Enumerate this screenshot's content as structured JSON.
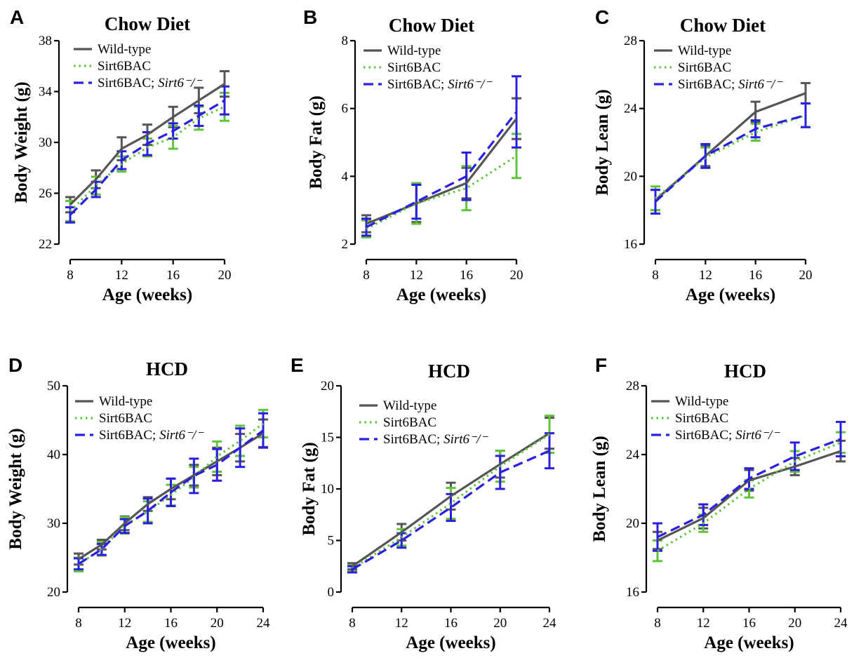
{
  "chart_data": [
    {
      "panel": "A",
      "type": "line",
      "title": "Chow Diet",
      "xlabel": "Age (weeks)",
      "ylabel": "Body Weight (g)",
      "xlim": [
        8,
        20
      ],
      "ylim": [
        22,
        38
      ],
      "xticks": [
        8,
        12,
        16,
        20
      ],
      "yticks": [
        22,
        26,
        30,
        34,
        38
      ],
      "x": [
        8,
        10,
        12,
        14,
        16,
        18,
        20
      ],
      "series": [
        {
          "name": "Wild-type",
          "color": "#555555",
          "dash": "solid",
          "values": [
            25.1,
            27.1,
            29.5,
            30.6,
            32.0,
            33.3,
            34.6
          ],
          "errors": [
            0.6,
            0.7,
            0.9,
            0.8,
            0.8,
            1.0,
            1.0
          ]
        },
        {
          "name": "Sirt6BAC",
          "color": "#5ec43a",
          "dash": "dotted",
          "values": [
            24.6,
            26.6,
            28.3,
            29.6,
            30.4,
            31.9,
            32.8
          ],
          "errors": [
            0.8,
            0.7,
            0.6,
            0.7,
            0.9,
            0.9,
            1.1
          ]
        },
        {
          "name": "Sirt6BAC; Sirt6⁻/⁻",
          "color": "#2a1fe0",
          "dash": "dashed",
          "values": [
            24.3,
            26.3,
            28.6,
            29.9,
            30.9,
            32.1,
            33.3
          ],
          "errors": [
            0.6,
            0.6,
            0.7,
            0.9,
            0.6,
            0.8,
            1.1
          ]
        }
      ]
    },
    {
      "panel": "B",
      "type": "line",
      "title": "Chow Diet",
      "xlabel": "Age (weeks)",
      "ylabel": "Body Fat (g)",
      "xlim": [
        8,
        20
      ],
      "ylim": [
        2,
        8
      ],
      "xticks": [
        8,
        12,
        16,
        20
      ],
      "yticks": [
        2,
        4,
        6,
        8
      ],
      "x": [
        8,
        12,
        16,
        20
      ],
      "series": [
        {
          "name": "Wild-type",
          "color": "#555555",
          "dash": "solid",
          "values": [
            2.6,
            3.2,
            3.8,
            5.7
          ],
          "errors": [
            0.25,
            0.55,
            0.45,
            0.6
          ]
        },
        {
          "name": "Sirt6BAC",
          "color": "#5ec43a",
          "dash": "dotted",
          "values": [
            2.45,
            3.2,
            3.65,
            4.6
          ],
          "errors": [
            0.25,
            0.6,
            0.65,
            0.65
          ]
        },
        {
          "name": "Sirt6BAC; Sirt6⁻/⁻",
          "color": "#2a1fe0",
          "dash": "dashed",
          "values": [
            2.5,
            3.25,
            4.0,
            5.9
          ],
          "errors": [
            0.25,
            0.5,
            0.7,
            1.05
          ]
        }
      ]
    },
    {
      "panel": "C",
      "type": "line",
      "title": "Chow Diet",
      "xlabel": "Age (weeks)",
      "ylabel": "Body Lean (g)",
      "xlim": [
        8,
        20
      ],
      "ylim": [
        16,
        28
      ],
      "xticks": [
        8,
        12,
        16,
        20
      ],
      "yticks": [
        16,
        20,
        24,
        28
      ],
      "x": [
        8,
        12,
        16,
        20
      ],
      "series": [
        {
          "name": "Wild-type",
          "color": "#555555",
          "dash": "solid",
          "values": [
            18.6,
            21.2,
            23.8,
            24.9
          ],
          "errors": [
            0.6,
            0.6,
            0.6,
            0.6
          ]
        },
        {
          "name": "Sirt6BAC",
          "color": "#5ec43a",
          "dash": "dotted",
          "values": [
            18.7,
            21.1,
            22.6,
            23.6
          ],
          "errors": [
            0.7,
            0.6,
            0.5,
            0.7
          ]
        },
        {
          "name": "Sirt6BAC; Sirt6⁻/⁻",
          "color": "#2a1fe0",
          "dash": "dashed",
          "values": [
            18.5,
            21.2,
            22.8,
            23.6
          ],
          "errors": [
            0.7,
            0.7,
            0.5,
            0.7
          ]
        }
      ]
    },
    {
      "panel": "D",
      "type": "line",
      "title": "HCD",
      "xlabel": "Age (weeks)",
      "ylabel": "Body Weight (g)",
      "xlim": [
        8,
        24
      ],
      "ylim": [
        20,
        50
      ],
      "xticks": [
        8,
        12,
        16,
        20,
        24
      ],
      "yticks": [
        20,
        30,
        40,
        50
      ],
      "x": [
        8,
        10,
        12,
        14,
        16,
        18,
        20,
        22,
        24
      ],
      "series": [
        {
          "name": "Wild-type",
          "color": "#555555",
          "dash": "solid",
          "values": [
            24.8,
            26.9,
            30.0,
            32.8,
            35.0,
            37.0,
            39.0,
            41.0,
            43.1
          ],
          "errors": [
            0.8,
            0.7,
            1.0,
            1.0,
            1.5,
            1.5,
            2.0,
            2.0,
            2.0
          ]
        },
        {
          "name": "Sirt6BAC",
          "color": "#5ec43a",
          "dash": "dotted",
          "values": [
            24.0,
            26.3,
            29.7,
            31.7,
            34.1,
            36.7,
            39.7,
            42.0,
            44.5
          ],
          "errors": [
            1.0,
            1.0,
            1.2,
            1.5,
            1.5,
            1.5,
            2.2,
            2.2,
            2.0
          ]
        },
        {
          "name": "Sirt6BAC; Sirt6⁻/⁻",
          "color": "#2a1fe0",
          "dash": "dashed",
          "values": [
            24.1,
            26.2,
            29.6,
            31.8,
            34.5,
            36.9,
            38.5,
            41.0,
            43.5
          ],
          "errors": [
            0.8,
            0.8,
            1.0,
            1.8,
            2.0,
            2.5,
            2.3,
            2.8,
            2.5
          ]
        }
      ]
    },
    {
      "panel": "E",
      "type": "line",
      "title": "HCD",
      "xlabel": "Age (weeks)",
      "ylabel": "Body Fat (g)",
      "xlim": [
        8,
        24
      ],
      "ylim": [
        0,
        20
      ],
      "xticks": [
        8,
        12,
        16,
        20,
        24
      ],
      "yticks": [
        0,
        5,
        10,
        15,
        20
      ],
      "x": [
        8,
        12,
        16,
        20,
        24
      ],
      "series": [
        {
          "name": "Wild-type",
          "color": "#555555",
          "dash": "solid",
          "values": [
            2.5,
            5.8,
            9.3,
            12.4,
            15.4
          ],
          "errors": [
            0.3,
            0.8,
            1.3,
            1.3,
            1.5
          ]
        },
        {
          "name": "Sirt6BAC",
          "color": "#5ec43a",
          "dash": "dotted",
          "values": [
            2.3,
            5.3,
            8.6,
            12.2,
            15.3
          ],
          "errors": [
            0.3,
            0.8,
            1.5,
            1.5,
            1.8
          ]
        },
        {
          "name": "Sirt6BAC; Sirt6⁻/⁻",
          "color": "#2a1fe0",
          "dash": "dashed",
          "values": [
            2.2,
            5.0,
            8.2,
            11.6,
            13.7
          ],
          "errors": [
            0.3,
            0.7,
            1.3,
            1.6,
            1.7
          ]
        }
      ]
    },
    {
      "panel": "F",
      "type": "line",
      "title": "HCD",
      "xlabel": "Age (weeks)",
      "ylabel": "Body Lean (g)",
      "xlim": [
        8,
        24
      ],
      "ylim": [
        16,
        28
      ],
      "xticks": [
        8,
        12,
        16,
        20,
        24
      ],
      "yticks": [
        16,
        20,
        24,
        28
      ],
      "x": [
        8,
        12,
        16,
        20,
        24
      ],
      "series": [
        {
          "name": "Wild-type",
          "color": "#555555",
          "dash": "solid",
          "values": [
            19.0,
            20.3,
            22.5,
            23.3,
            24.2
          ],
          "errors": [
            0.5,
            0.6,
            0.6,
            0.5,
            0.6
          ]
        },
        {
          "name": "Sirt6BAC",
          "color": "#5ec43a",
          "dash": "dotted",
          "values": [
            18.4,
            20.0,
            22.0,
            23.6,
            24.7
          ],
          "errors": [
            0.6,
            0.5,
            0.5,
            0.6,
            0.6
          ]
        },
        {
          "name": "Sirt6BAC; Sirt6⁻/⁻",
          "color": "#2a1fe0",
          "dash": "dashed",
          "values": [
            19.2,
            20.5,
            22.6,
            23.9,
            24.9
          ],
          "errors": [
            0.8,
            0.6,
            0.6,
            0.8,
            1.0
          ]
        }
      ]
    }
  ]
}
